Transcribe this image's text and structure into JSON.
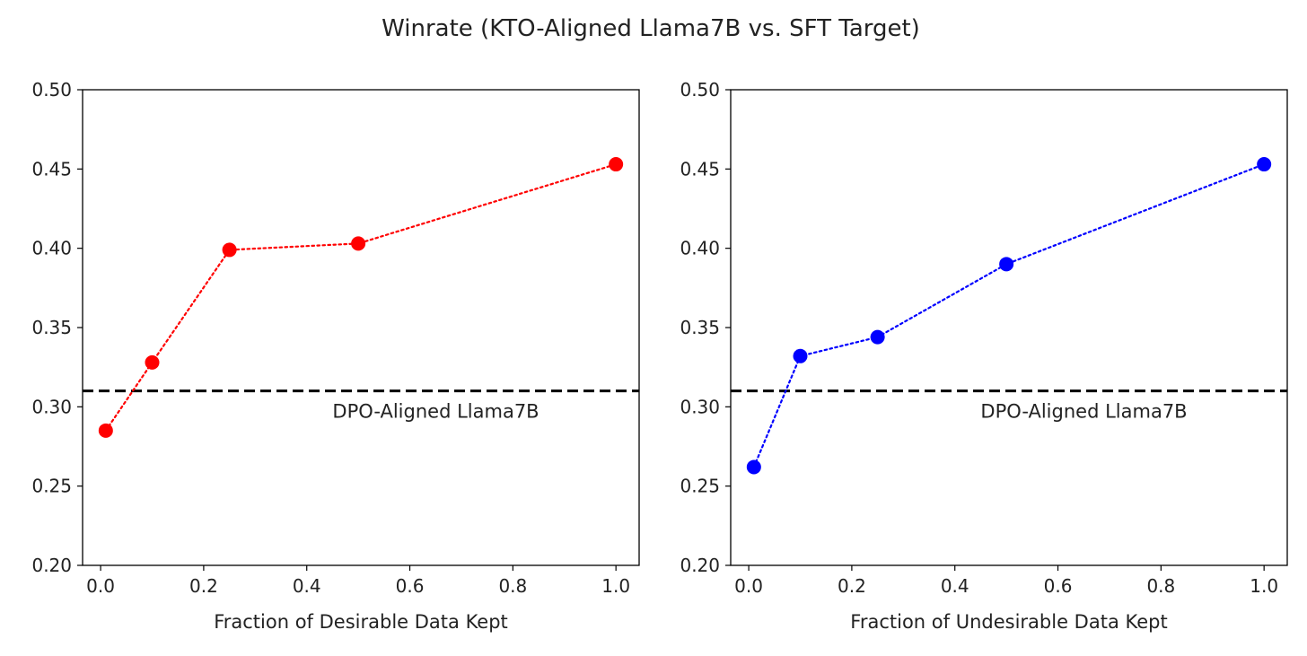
{
  "figure": {
    "title": "Winrate (KTO-Aligned Llama7B vs. SFT Target)"
  },
  "chart_data": [
    {
      "type": "line",
      "title": "",
      "xlabel": "Fraction of Desirable Data Kept",
      "ylabel": "",
      "xlim": [
        -0.035,
        1.045
      ],
      "ylim": [
        0.2,
        0.5
      ],
      "xticks": [
        0.0,
        0.2,
        0.4,
        0.6,
        0.8,
        1.0
      ],
      "xtick_labels": [
        "0.0",
        "0.2",
        "0.4",
        "0.6",
        "0.8",
        "1.0"
      ],
      "yticks": [
        0.2,
        0.25,
        0.3,
        0.35,
        0.4,
        0.45,
        0.5
      ],
      "ytick_labels": [
        "0.20",
        "0.25",
        "0.30",
        "0.35",
        "0.40",
        "0.45",
        "0.50"
      ],
      "grid": false,
      "series": [
        {
          "name": "KTO-Aligned Llama7B",
          "color": "#ff0000",
          "linestyle": "dotted",
          "marker": "circle",
          "x": [
            0.01,
            0.1,
            0.25,
            0.5,
            1.0
          ],
          "y": [
            0.285,
            0.328,
            0.399,
            0.403,
            0.453
          ]
        }
      ],
      "reference_line": {
        "y": 0.31,
        "color": "#000000",
        "linestyle": "dashed",
        "label": "DPO-Aligned Llama7B"
      },
      "annotation": {
        "text": "DPO-Aligned Llama7B",
        "x": 0.45,
        "y": 0.293
      }
    },
    {
      "type": "line",
      "title": "",
      "xlabel": "Fraction of Undesirable Data Kept",
      "ylabel": "",
      "xlim": [
        -0.035,
        1.045
      ],
      "ylim": [
        0.2,
        0.5
      ],
      "xticks": [
        0.0,
        0.2,
        0.4,
        0.6,
        0.8,
        1.0
      ],
      "xtick_labels": [
        "0.0",
        "0.2",
        "0.4",
        "0.6",
        "0.8",
        "1.0"
      ],
      "yticks": [
        0.2,
        0.25,
        0.3,
        0.35,
        0.4,
        0.45,
        0.5
      ],
      "ytick_labels": [
        "0.20",
        "0.25",
        "0.30",
        "0.35",
        "0.40",
        "0.45",
        "0.50"
      ],
      "grid": false,
      "series": [
        {
          "name": "KTO-Aligned Llama7B",
          "color": "#0000ff",
          "linestyle": "dotted",
          "marker": "circle",
          "x": [
            0.01,
            0.1,
            0.25,
            0.5,
            1.0
          ],
          "y": [
            0.262,
            0.332,
            0.344,
            0.39,
            0.453
          ]
        }
      ],
      "reference_line": {
        "y": 0.31,
        "color": "#000000",
        "linestyle": "dashed",
        "label": "DPO-Aligned Llama7B"
      },
      "annotation": {
        "text": "DPO-Aligned Llama7B",
        "x": 0.45,
        "y": 0.293
      }
    }
  ]
}
